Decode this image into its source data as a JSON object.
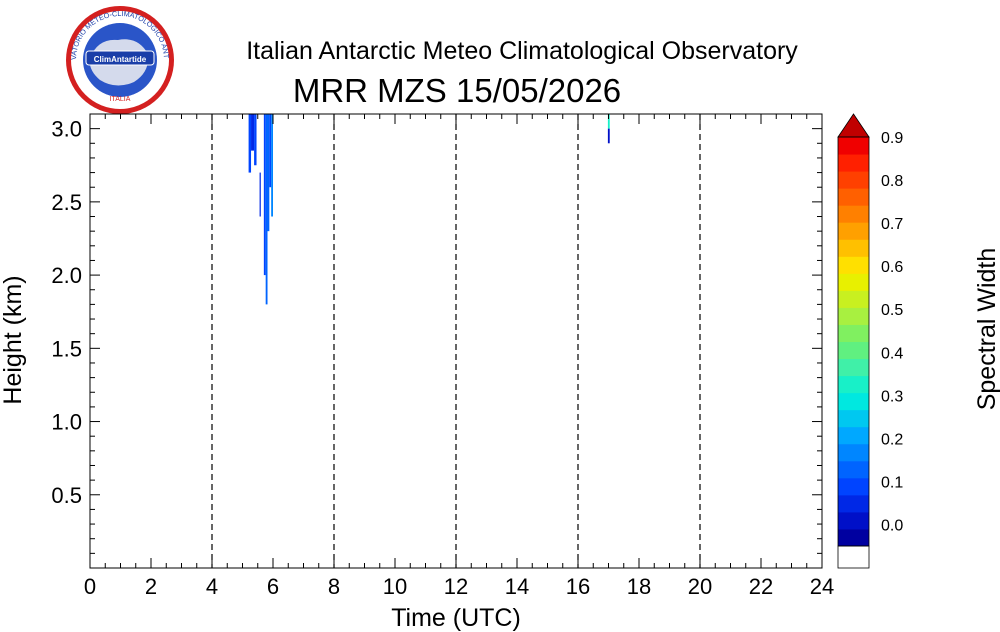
{
  "header": {
    "title": "Italian Antarctic Meteo Climatological Observatory",
    "subtitle": "MRR MZS 15/05/2026"
  },
  "logo": {
    "ring_text": "OSSERVATORIO METEO-CLIMATOLOGICO ANTARTICO",
    "center_text": "ClimAntartide",
    "bottom_text": "ITALIA"
  },
  "chart_data": {
    "type": "heatmap",
    "xlabel": "Time (UTC)",
    "ylabel": "Height (km)",
    "xlim": [
      0,
      24
    ],
    "ylim": [
      0,
      3.1
    ],
    "xticks": [
      "0",
      "2",
      "4",
      "6",
      "8",
      "10",
      "12",
      "14",
      "16",
      "18",
      "20",
      "22",
      "24"
    ],
    "yticks": [
      "0.5",
      "1.0",
      "1.5",
      "2.0",
      "2.5",
      "3.0"
    ],
    "dashed_vlines": [
      4,
      8,
      12,
      16,
      20
    ],
    "cells": [
      {
        "x0": 5.2,
        "x1": 5.28,
        "y0": 2.7,
        "y1": 3.1,
        "value": 0.12
      },
      {
        "x0": 5.28,
        "x1": 5.38,
        "y0": 2.85,
        "y1": 3.1,
        "value": 0.1
      },
      {
        "x0": 5.38,
        "x1": 5.46,
        "y0": 2.75,
        "y1": 3.1,
        "value": 0.14
      },
      {
        "x0": 5.56,
        "x1": 5.6,
        "y0": 2.4,
        "y1": 2.7,
        "value": 0.08
      },
      {
        "x0": 5.7,
        "x1": 5.76,
        "y0": 2.0,
        "y1": 3.1,
        "value": 0.12
      },
      {
        "x0": 5.76,
        "x1": 5.82,
        "y0": 1.8,
        "y1": 3.1,
        "value": 0.16
      },
      {
        "x0": 5.82,
        "x1": 5.88,
        "y0": 2.3,
        "y1": 3.1,
        "value": 0.18
      },
      {
        "x0": 5.88,
        "x1": 5.94,
        "y0": 2.6,
        "y1": 3.1,
        "value": 0.14
      },
      {
        "x0": 5.94,
        "x1": 6.0,
        "y0": 2.4,
        "y1": 3.1,
        "value": 0.2
      },
      {
        "x0": 16.98,
        "x1": 17.04,
        "y0": 3.0,
        "y1": 3.1,
        "value": 0.38
      },
      {
        "x0": 16.98,
        "x1": 17.04,
        "y0": 2.9,
        "y1": 3.0,
        "value": 0.05
      }
    ],
    "colorbar": {
      "label": "Spectral Width",
      "min": 0.0,
      "max": 0.95,
      "ticks": [
        "0.0",
        "0.1",
        "0.2",
        "0.3",
        "0.4",
        "0.5",
        "0.6",
        "0.7",
        "0.8",
        "0.9"
      ],
      "colors": [
        "#0000a0",
        "#0010c8",
        "#0028e6",
        "#0044ff",
        "#0064ff",
        "#0086ff",
        "#00a8ff",
        "#00c8f0",
        "#00e8e0",
        "#18f0c8",
        "#40f0a8",
        "#60f080",
        "#80f060",
        "#a8f040",
        "#c8f020",
        "#e8f000",
        "#ffe000",
        "#ffc000",
        "#ffa000",
        "#ff8000",
        "#ff6000",
        "#ff4000",
        "#ff2000",
        "#f00000"
      ],
      "under_color": "#ffffff",
      "over_color": "#c00000"
    }
  }
}
